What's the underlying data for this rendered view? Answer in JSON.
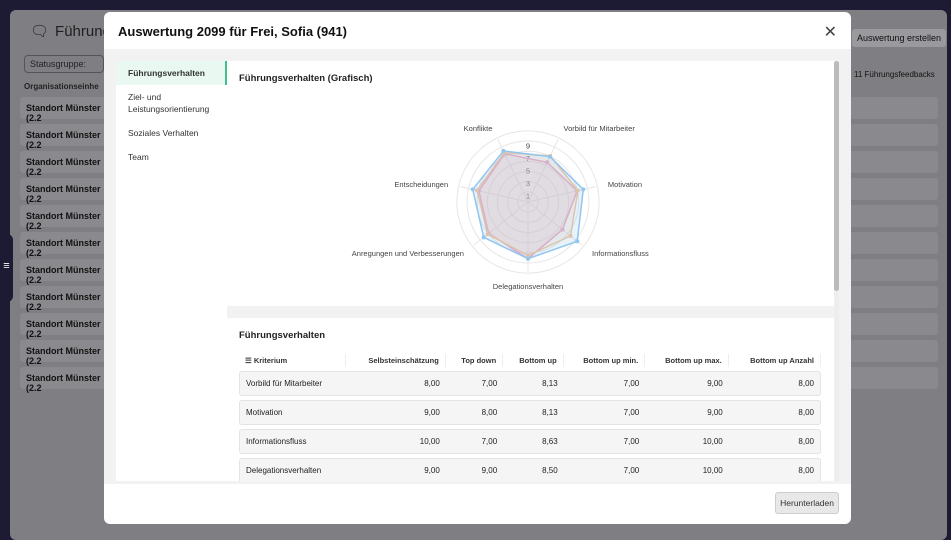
{
  "background": {
    "title": "Führungsfe",
    "status_filter": "Statusgruppe:",
    "column_header": "Organisationseinhe",
    "create_button": "Auswertung erstellen",
    "feedback_count": "11 Führungsfeedbacks",
    "rows": [
      "Standort Münster (2.2",
      "Standort Münster (2.2",
      "Standort Münster (2.2",
      "Standort Münster (2.2",
      "Standort Münster (2.2",
      "Standort Münster (2.2",
      "Standort Münster (2.2",
      "Standort Münster (2.2",
      "Standort Münster (2.2",
      "Standort Münster (2.2",
      "Standort Münster (2.2"
    ]
  },
  "modal": {
    "title": "Auswertung 2099 für Frei, Sofia (941)",
    "nav": [
      "Führungsverhalten",
      "Ziel- und Leistungsorientierung",
      "Soziales Verhalten",
      "Team"
    ],
    "chart_panel_title": "Führungsverhalten (Grafisch)",
    "table_panel_title": "Führungsverhalten",
    "download_button": "Herunterladen"
  },
  "chart_data": {
    "type": "radar",
    "axes": [
      "Vorbild für Mitarbeiter",
      "Motivation",
      "Informationsfluss",
      "Delegationsverhalten",
      "Anregungen und Verbesserungen",
      "Entscheidungen",
      "Konflikte"
    ],
    "ticks": [
      "1",
      "3",
      "5",
      "7",
      "9"
    ],
    "range": [
      0,
      10
    ],
    "series": [
      {
        "name": "Top down",
        "color": "#e9a3c9",
        "values": [
          7,
          8,
          7,
          9,
          8,
          8,
          8.5
        ]
      },
      {
        "name": "Bottom up",
        "color": "#f3c49b",
        "values": [
          8.13,
          8.13,
          8.63,
          8.5,
          8.2,
          8.3,
          8.7
        ]
      },
      {
        "name": "Selbsteinschätzung",
        "color": "#90c6ef",
        "values": [
          8,
          9,
          10,
          9,
          9,
          9,
          9
        ]
      }
    ],
    "legend": "bottom"
  },
  "table": {
    "headers": [
      "Kriterium",
      "Selbsteinschätzung",
      "Top down",
      "Bottom up",
      "Bottom up min.",
      "Bottom up max.",
      "Bottom up Anzahl"
    ],
    "rows": [
      [
        "Vorbild für Mitarbeiter",
        "8,00",
        "7,00",
        "8,13",
        "7,00",
        "9,00",
        "8,00"
      ],
      [
        "Motivation",
        "9,00",
        "8,00",
        "8,13",
        "7,00",
        "9,00",
        "8,00"
      ],
      [
        "Informationsfluss",
        "10,00",
        "7,00",
        "8,63",
        "7,00",
        "10,00",
        "8,00"
      ],
      [
        "Delegationsverhalten",
        "9,00",
        "9,00",
        "8,50",
        "7,00",
        "10,00",
        "8,00"
      ]
    ]
  }
}
